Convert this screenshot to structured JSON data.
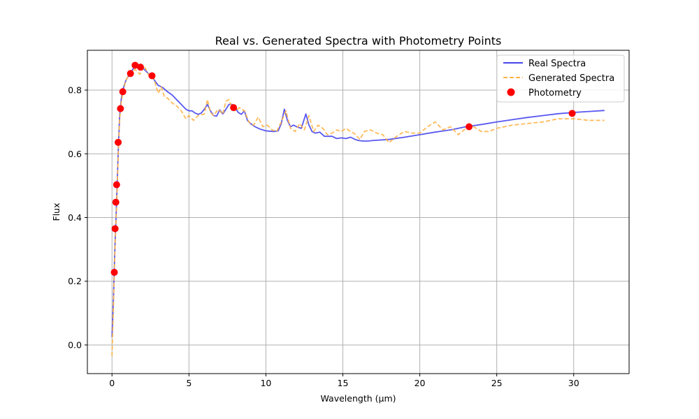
{
  "chart_data": {
    "type": "line",
    "title": "Real vs. Generated Spectra with Photometry Points",
    "xlabel": "Wavelength (µm)",
    "ylabel": "Flux",
    "xlim": [
      -1.6,
      33.6
    ],
    "ylim": [
      -0.09,
      0.925
    ],
    "x_ticks": [
      0,
      5,
      10,
      15,
      20,
      25,
      30
    ],
    "y_ticks": [
      0.0,
      0.2,
      0.4,
      0.6,
      0.8
    ],
    "x_tick_labels": [
      "0",
      "5",
      "10",
      "15",
      "20",
      "25",
      "30"
    ],
    "y_tick_labels": [
      "0.0",
      "0.2",
      "0.4",
      "0.6",
      "0.8"
    ],
    "grid": true,
    "legend_position": "top-right",
    "series": [
      {
        "name": "Real Spectra",
        "style": "solid",
        "color": "#4646f0",
        "x": [
          0.0,
          0.1,
          0.15,
          0.2,
          0.25,
          0.3,
          0.4,
          0.5,
          0.6,
          0.7,
          0.9,
          1.2,
          1.5,
          1.8,
          2.1,
          2.4,
          2.7,
          3.0,
          3.3,
          3.6,
          3.9,
          4.2,
          4.5,
          4.8,
          5.0,
          5.2,
          5.4,
          5.6,
          5.8,
          6.0,
          6.2,
          6.4,
          6.6,
          6.8,
          7.0,
          7.2,
          7.4,
          7.6,
          7.8,
          8.0,
          8.2,
          8.4,
          8.6,
          8.8,
          9.0,
          9.3,
          9.6,
          10.0,
          10.5,
          10.8,
          11.0,
          11.2,
          11.4,
          11.6,
          11.8,
          12.0,
          12.3,
          12.6,
          12.8,
          13.0,
          13.2,
          13.5,
          13.8,
          14.0,
          14.3,
          14.6,
          14.9,
          15.2,
          15.5,
          15.8,
          16.0,
          16.3,
          16.6,
          17.0,
          18.0,
          19.0,
          20.0,
          21.0,
          22.0,
          23.0,
          24.0,
          25.0,
          26.0,
          27.0,
          28.0,
          29.0,
          30.0,
          31.0,
          32.0
        ],
        "values": [
          0.025,
          0.15,
          0.24,
          0.32,
          0.38,
          0.45,
          0.6,
          0.72,
          0.77,
          0.8,
          0.83,
          0.855,
          0.875,
          0.875,
          0.865,
          0.85,
          0.835,
          0.815,
          0.808,
          0.795,
          0.785,
          0.77,
          0.755,
          0.74,
          0.735,
          0.735,
          0.728,
          0.724,
          0.728,
          0.74,
          0.755,
          0.735,
          0.72,
          0.718,
          0.738,
          0.725,
          0.74,
          0.755,
          0.755,
          0.745,
          0.73,
          0.724,
          0.735,
          0.705,
          0.695,
          0.685,
          0.678,
          0.672,
          0.67,
          0.672,
          0.695,
          0.74,
          0.705,
          0.685,
          0.69,
          0.685,
          0.68,
          0.725,
          0.69,
          0.67,
          0.665,
          0.668,
          0.655,
          0.655,
          0.655,
          0.648,
          0.65,
          0.648,
          0.652,
          0.645,
          0.642,
          0.64,
          0.64,
          0.642,
          0.645,
          0.652,
          0.66,
          0.668,
          0.675,
          0.685,
          0.692,
          0.7,
          0.707,
          0.714,
          0.72,
          0.726,
          0.73,
          0.733,
          0.736
        ]
      },
      {
        "name": "Generated Spectra",
        "style": "dashed",
        "color": "#ffb347",
        "x": [
          0.0,
          0.1,
          0.15,
          0.2,
          0.25,
          0.3,
          0.4,
          0.5,
          0.6,
          0.7,
          0.9,
          1.2,
          1.5,
          1.8,
          2.1,
          2.4,
          2.7,
          3.0,
          3.2,
          3.4,
          3.6,
          3.9,
          4.2,
          4.5,
          4.8,
          5.0,
          5.3,
          5.6,
          6.0,
          6.2,
          6.4,
          6.6,
          6.9,
          7.2,
          7.4,
          7.6,
          7.8,
          8.0,
          8.3,
          8.6,
          8.9,
          9.2,
          9.5,
          9.8,
          10.1,
          10.4,
          10.7,
          11.0,
          11.3,
          11.6,
          11.9,
          12.2,
          12.5,
          12.8,
          13.1,
          13.4,
          13.7,
          14.0,
          14.3,
          14.6,
          14.9,
          15.2,
          15.5,
          15.8,
          16.1,
          16.4,
          16.8,
          17.2,
          17.6,
          18.0,
          18.5,
          19.0,
          19.5,
          20.0,
          20.5,
          21.0,
          21.5,
          22.0,
          22.5,
          23.0,
          23.5,
          24.0,
          24.5,
          25.0,
          26.0,
          27.0,
          28.0,
          29.0,
          30.0,
          31.0,
          32.0
        ],
        "values": [
          -0.035,
          0.13,
          0.23,
          0.31,
          0.37,
          0.43,
          0.59,
          0.71,
          0.76,
          0.79,
          0.83,
          0.855,
          0.865,
          0.85,
          0.875,
          0.845,
          0.84,
          0.79,
          0.81,
          0.78,
          0.775,
          0.76,
          0.75,
          0.735,
          0.71,
          0.72,
          0.705,
          0.72,
          0.725,
          0.77,
          0.73,
          0.72,
          0.74,
          0.725,
          0.765,
          0.77,
          0.745,
          0.735,
          0.745,
          0.735,
          0.7,
          0.69,
          0.715,
          0.685,
          0.69,
          0.675,
          0.67,
          0.7,
          0.735,
          0.68,
          0.67,
          0.695,
          0.675,
          0.72,
          0.67,
          0.69,
          0.68,
          0.66,
          0.665,
          0.675,
          0.67,
          0.68,
          0.67,
          0.662,
          0.645,
          0.67,
          0.675,
          0.665,
          0.66,
          0.635,
          0.655,
          0.67,
          0.665,
          0.665,
          0.685,
          0.7,
          0.675,
          0.685,
          0.66,
          0.68,
          0.685,
          0.67,
          0.67,
          0.68,
          0.69,
          0.695,
          0.7,
          0.71,
          0.71,
          0.705,
          0.705
        ]
      }
    ],
    "scatter": {
      "name": "Photometry",
      "color": "#ff0000",
      "x": [
        0.15,
        0.2,
        0.25,
        0.3,
        0.4,
        0.55,
        0.7,
        1.2,
        1.5,
        1.85,
        2.6,
        7.9,
        23.2,
        29.9
      ],
      "values": [
        0.228,
        0.365,
        0.448,
        0.503,
        0.636,
        0.742,
        0.795,
        0.852,
        0.878,
        0.872,
        0.845,
        0.745,
        0.685,
        0.727
      ]
    }
  }
}
